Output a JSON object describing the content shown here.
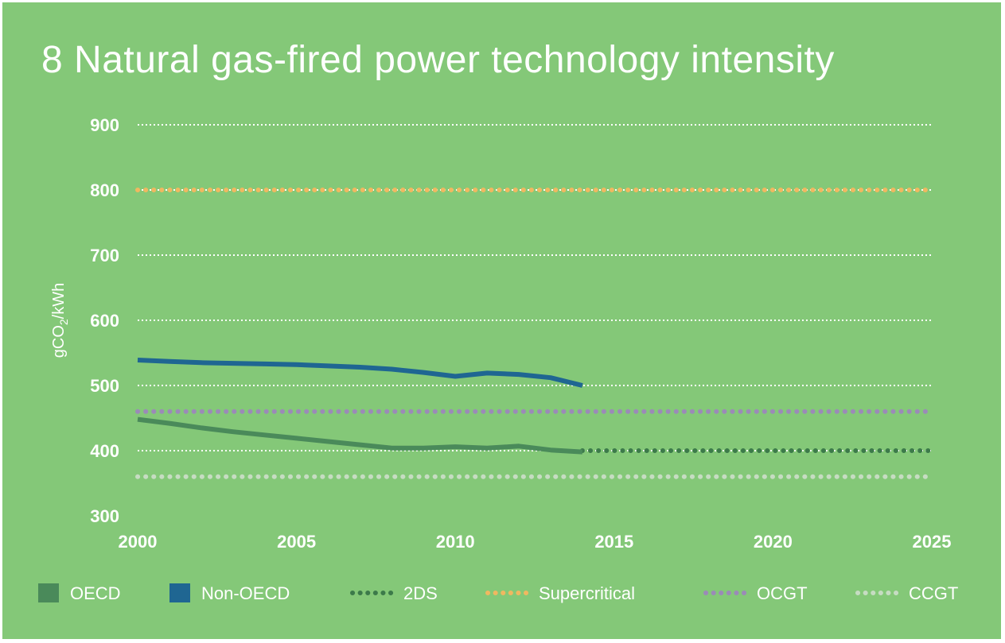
{
  "title": "8 Natural gas-fired power technology intensity",
  "colors": {
    "background": "#84c878",
    "text": "#ffffff",
    "gridline": "#ffffff"
  },
  "chart_data": {
    "type": "line",
    "title": "8 Natural gas-fired power technology intensity",
    "ylabel": "gCO2/kWh",
    "xlabel": "",
    "xlim": [
      2000,
      2025
    ],
    "ylim": [
      300,
      900
    ],
    "xticks": [
      2000,
      2005,
      2010,
      2015,
      2020,
      2025
    ],
    "yticks": [
      300,
      400,
      500,
      600,
      700,
      800,
      900
    ],
    "grid": "horizontal dotted",
    "legend_position": "bottom",
    "series": [
      {
        "name": "OECD",
        "style": "solid",
        "color": "#4a8a5a",
        "x": [
          2000,
          2001,
          2002,
          2003,
          2004,
          2005,
          2006,
          2007,
          2008,
          2009,
          2010,
          2011,
          2012,
          2013,
          2014
        ],
        "y": [
          448,
          442,
          435,
          429,
          424,
          419,
          414,
          409,
          404,
          404,
          406,
          404,
          407,
          401,
          398
        ]
      },
      {
        "name": "Non-OECD",
        "style": "solid",
        "color": "#1f6692",
        "x": [
          2000,
          2001,
          2002,
          2003,
          2004,
          2005,
          2006,
          2007,
          2008,
          2009,
          2010,
          2011,
          2012,
          2013,
          2014
        ],
        "y": [
          539,
          537,
          535,
          534,
          533,
          532,
          530,
          528,
          525,
          520,
          514,
          519,
          517,
          512,
          500
        ]
      },
      {
        "name": "2DS",
        "style": "dotted",
        "color": "#3c7a4a",
        "x": [
          2014,
          2025
        ],
        "y": [
          400,
          400
        ]
      },
      {
        "name": "Supercritical",
        "style": "dotted",
        "color": "#f0b860",
        "x": [
          2000,
          2025
        ],
        "y": [
          800,
          800
        ]
      },
      {
        "name": "OCGT",
        "style": "dotted",
        "color": "#9b8ab8",
        "x": [
          2000,
          2025
        ],
        "y": [
          460,
          460
        ]
      },
      {
        "name": "CCGT",
        "style": "dotted",
        "color": "#c6dcc2",
        "x": [
          2000,
          2025
        ],
        "y": [
          360,
          360
        ]
      }
    ]
  }
}
